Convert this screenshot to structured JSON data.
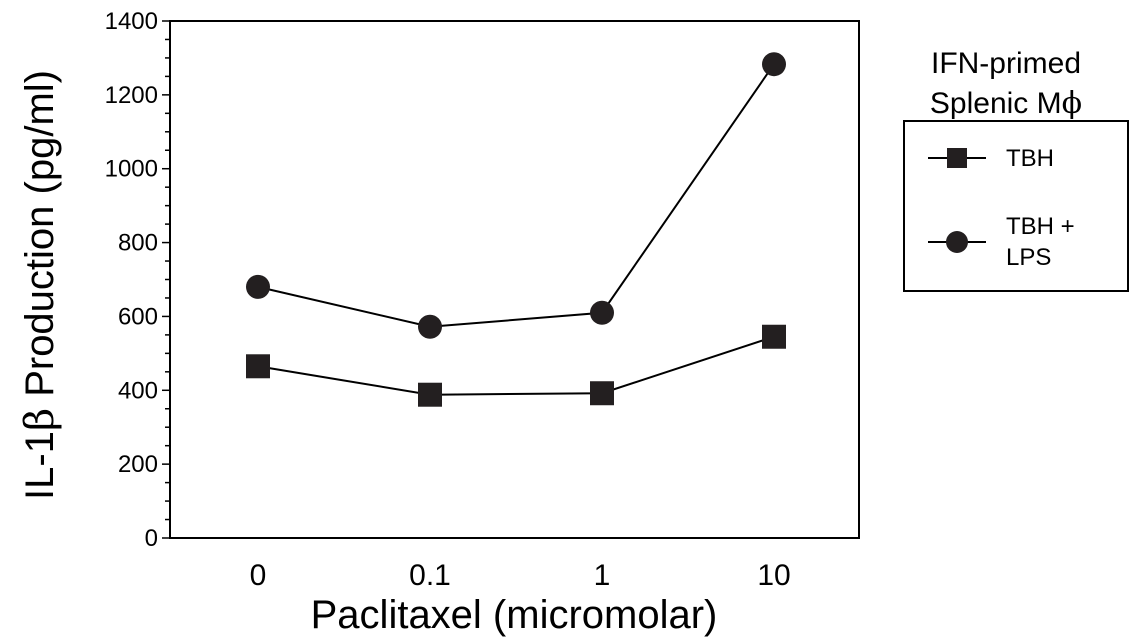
{
  "chart_data": {
    "type": "line",
    "xlabel": "Paclitaxel (micromolar)",
    "ylabel_prefix": "IL-1",
    "ylabel_greek": "β",
    "ylabel_suffix": " Production (pg/ml)",
    "categories": [
      "0",
      "0.1",
      "1",
      "10"
    ],
    "ylim": [
      0,
      1400
    ],
    "yticks": [
      0,
      200,
      400,
      600,
      800,
      1000,
      1200,
      1400
    ],
    "ytick_labels": [
      "0",
      "200",
      "400",
      "600",
      "800",
      "1000",
      "1200",
      "1400"
    ],
    "grid": false,
    "legend_placement": "right",
    "legend_title_line1": "IFN-primed",
    "legend_title_line2_prefix": "Splenic M",
    "legend_title_line2_greek": "ϕ",
    "series": [
      {
        "name": "TBH",
        "marker": "square",
        "values": [
          465,
          388,
          392,
          545
        ]
      },
      {
        "name_line1": "TBH +",
        "name_line2": "LPS",
        "marker": "circle",
        "values": [
          680,
          572,
          610,
          1283
        ]
      }
    ],
    "colors": {
      "line": "#000000",
      "marker": "#231f20"
    }
  }
}
